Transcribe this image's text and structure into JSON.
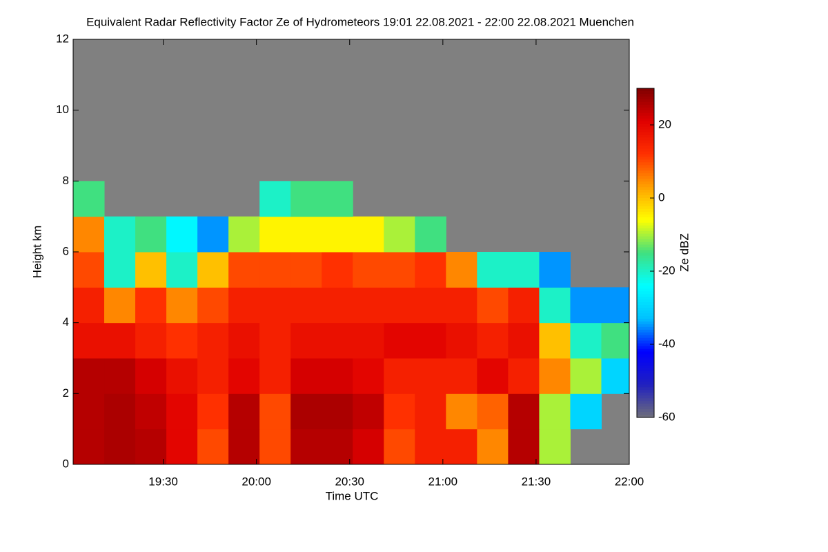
{
  "chart_data": {
    "type": "heatmap",
    "title": "Equivalent Radar Reflectivity Factor Ze of Hydrometeors   19:01 22.08.2021 - 22:00 22.08.2021 Muenchen",
    "xlabel": "Time UTC",
    "ylabel": "Height km",
    "colorbar_label": "Ze dBZ",
    "xlim": [
      "19:01",
      "22:00"
    ],
    "xticks": [
      "19:30",
      "20:00",
      "20:30",
      "21:00",
      "21:30",
      "22:00"
    ],
    "ylim": [
      0,
      12
    ],
    "yticks": [
      0,
      2,
      4,
      6,
      8,
      10,
      12
    ],
    "zlim": [
      -60,
      30
    ],
    "zticks": [
      -60,
      -40,
      -20,
      0,
      20
    ],
    "missing_color": "#808080",
    "colormap": [
      "#6e6e7a",
      "#2020c0",
      "#0000ff",
      "#00c0ff",
      "#00ffff",
      "#40e080",
      "#ffff00",
      "#ffa000",
      "#ff3000",
      "#e00000",
      "#800000"
    ],
    "x": [
      "19:01",
      "19:11",
      "19:21",
      "19:31",
      "19:41",
      "19:51",
      "20:01",
      "20:11",
      "20:21",
      "20:31",
      "20:41",
      "20:51",
      "21:01",
      "21:11",
      "21:21",
      "21:31",
      "21:41",
      "21:51"
    ],
    "y_bins": [
      0,
      1,
      2,
      3,
      4,
      5,
      6,
      7,
      8
    ],
    "z": [
      [
        25,
        26,
        25,
        20,
        10,
        25,
        10,
        25,
        25,
        22,
        10,
        15,
        15,
        5,
        25,
        -10,
        null,
        null
      ],
      [
        25,
        26,
        24,
        20,
        12,
        25,
        10,
        26,
        26,
        24,
        12,
        15,
        5,
        8,
        25,
        -10,
        -30,
        null
      ],
      [
        25,
        25,
        22,
        18,
        15,
        20,
        15,
        22,
        22,
        20,
        15,
        15,
        15,
        20,
        15,
        5,
        -10,
        -30
      ],
      [
        18,
        18,
        15,
        12,
        15,
        18,
        15,
        18,
        18,
        18,
        20,
        20,
        18,
        15,
        18,
        0,
        -20,
        -15
      ],
      [
        15,
        5,
        12,
        5,
        10,
        15,
        15,
        15,
        15,
        15,
        15,
        15,
        15,
        10,
        15,
        -20,
        -35,
        -35
      ],
      [
        10,
        -20,
        0,
        -20,
        0,
        10,
        10,
        10,
        12,
        10,
        10,
        12,
        5,
        -20,
        -20,
        -35,
        null,
        null
      ],
      [
        5,
        -20,
        -15,
        -25,
        -35,
        -10,
        -5,
        -5,
        -5,
        -5,
        -10,
        -15,
        null,
        null,
        null,
        null,
        null,
        null
      ],
      [
        -15,
        null,
        null,
        null,
        null,
        null,
        -20,
        -15,
        -15,
        null,
        null,
        null,
        null,
        null,
        null,
        null,
        null,
        null
      ]
    ]
  }
}
